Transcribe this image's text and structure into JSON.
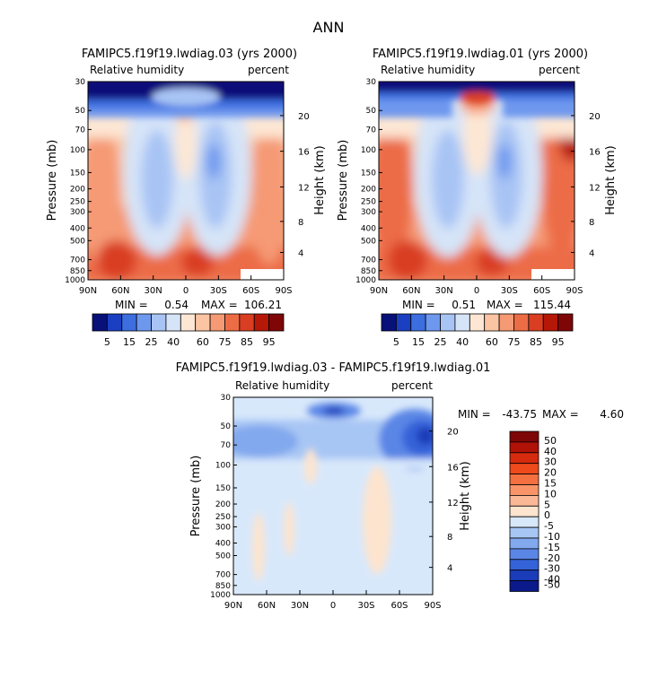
{
  "figure_title": "ANN",
  "chart_data": [
    {
      "type": "heatmap",
      "title": "FAMIPC5.f19f19.lwdiag.03 (yrs 2000)",
      "variable_label": "Relative humidity",
      "units_label": "percent",
      "ylabel": "Pressure (mb)",
      "ylabel_right": "Height (km)",
      "x_ticks": [
        "90N",
        "60N",
        "30N",
        "0",
        "30S",
        "60S",
        "90S"
      ],
      "y_ticks": [
        30,
        50,
        70,
        100,
        150,
        200,
        250,
        300,
        400,
        500,
        700,
        850,
        1000
      ],
      "y_ticks_right": [
        20,
        16,
        12,
        8,
        4
      ],
      "min_label": "MIN =",
      "min_value": "0.54",
      "max_label": "MAX =",
      "max_value": "106.21",
      "colorbar_labels": [
        "5",
        "15",
        "25",
        "40",
        "60",
        "75",
        "85",
        "95"
      ]
    },
    {
      "type": "heatmap",
      "title": "FAMIPC5.f19f19.lwdiag.01 (yrs 2000)",
      "variable_label": "Relative humidity",
      "units_label": "percent",
      "ylabel": "Pressure (mb)",
      "ylabel_right": "Height (km)",
      "x_ticks": [
        "90N",
        "60N",
        "30N",
        "0",
        "30S",
        "60S",
        "90S"
      ],
      "y_ticks": [
        30,
        50,
        70,
        100,
        150,
        200,
        250,
        300,
        400,
        500,
        700,
        850,
        1000
      ],
      "y_ticks_right": [
        20,
        16,
        12,
        8,
        4
      ],
      "min_label": "MIN =",
      "min_value": "0.51",
      "max_label": "MAX =",
      "max_value": "115.44",
      "colorbar_labels": [
        "5",
        "15",
        "25",
        "40",
        "60",
        "75",
        "85",
        "95"
      ]
    },
    {
      "type": "heatmap",
      "title": "FAMIPC5.f19f19.lwdiag.03 - FAMIPC5.f19f19.lwdiag.01",
      "variable_label": "Relative humidity",
      "units_label": "percent",
      "ylabel": "Pressure (mb)",
      "ylabel_right": "Height (km)",
      "x_ticks": [
        "90N",
        "60N",
        "30N",
        "0",
        "30S",
        "60S",
        "90S"
      ],
      "y_ticks": [
        30,
        50,
        70,
        100,
        150,
        200,
        250,
        300,
        400,
        500,
        700,
        850,
        1000
      ],
      "y_ticks_right": [
        20,
        16,
        12,
        8,
        4
      ],
      "min_label": "MIN =",
      "min_value": "-43.75",
      "max_label": "MAX =",
      "max_value": "4.60",
      "colorbar_labels": [
        "50",
        "40",
        "30",
        "20",
        "15",
        "10",
        "5",
        "0",
        "-5",
        "-10",
        "-15",
        "-20",
        "-30",
        "-40",
        "-50"
      ]
    }
  ],
  "colors": {
    "abs_scale": [
      "#08107a",
      "#1a3fc0",
      "#3d6ee0",
      "#6e98ee",
      "#a8c4f4",
      "#d6e4f8",
      "#fde7d4",
      "#fbc4a2",
      "#f59a74",
      "#ec6c46",
      "#d93e22",
      "#b61808",
      "#7e0606"
    ],
    "diff_scale": [
      "#7e0606",
      "#b01208",
      "#d52a0e",
      "#ee4a1c",
      "#f57040",
      "#f99468",
      "#fbb896",
      "#fde4cf",
      "#d8e8fb",
      "#a8c6f4",
      "#82a8ee",
      "#5a86e6",
      "#3462d8",
      "#1a3cb8",
      "#0a1a8a"
    ]
  }
}
